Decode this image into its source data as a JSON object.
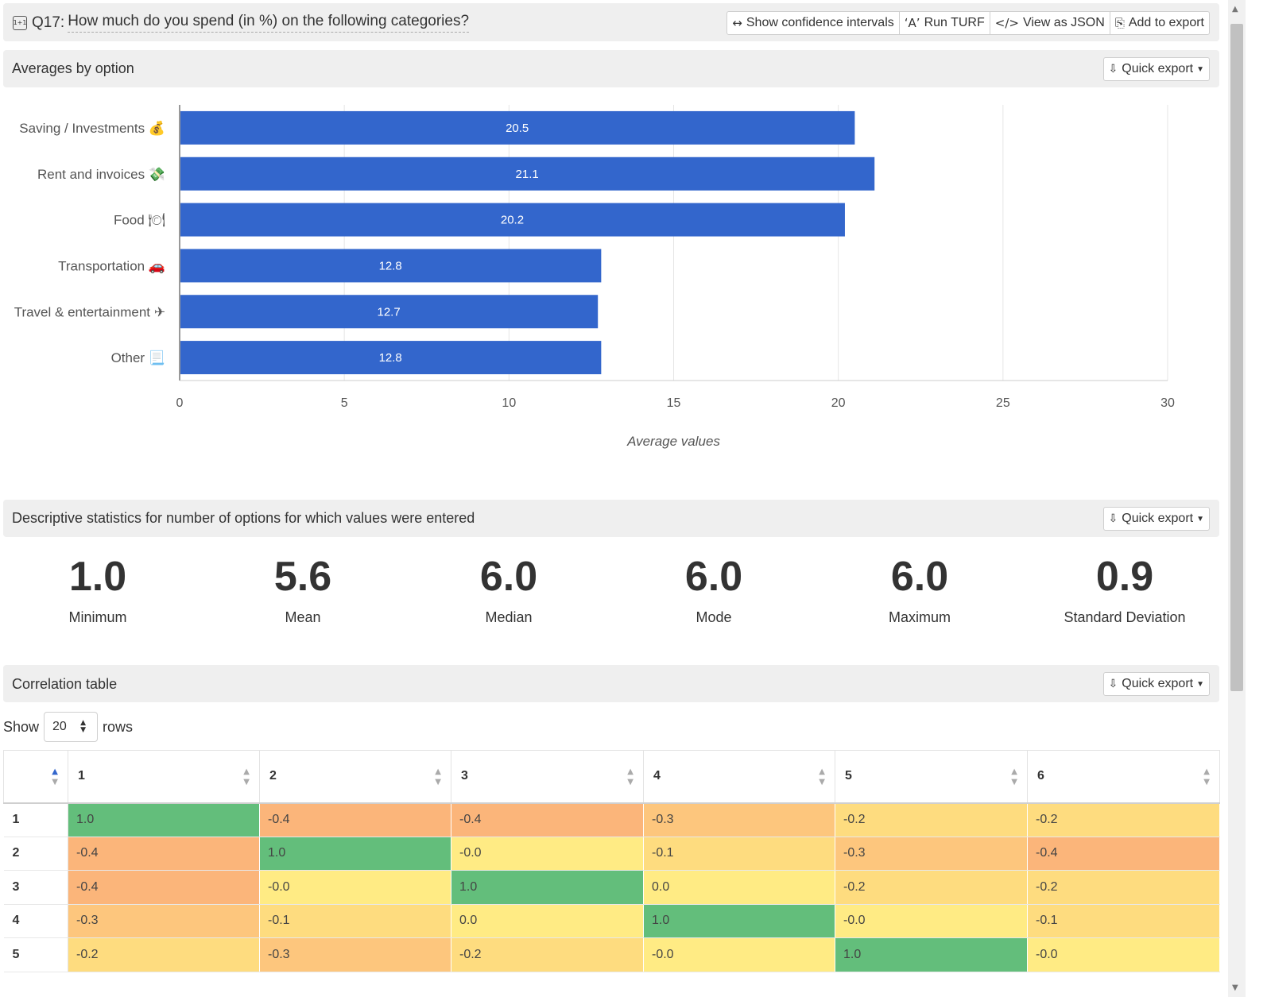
{
  "question": {
    "icon": "1+1",
    "number": "Q17:",
    "text": "How much do you spend (in %) on the following categories?"
  },
  "toolbar": {
    "confidence": "Show confidence intervals",
    "turf": "Run TURF",
    "json": "View as JSON",
    "export": "Add to export"
  },
  "averages": {
    "title": "Averages by option",
    "quick_export": "Quick export"
  },
  "chart_data": {
    "type": "bar",
    "orientation": "horizontal",
    "categories": [
      "Saving / Investments 💰",
      "Rent and invoices 💸",
      "Food 🍽",
      "Transportation 🚗",
      "Travel & entertainment ✈",
      "Other 📃"
    ],
    "values": [
      20.5,
      21.1,
      20.2,
      12.8,
      12.7,
      12.8
    ],
    "xlim": [
      0,
      30
    ],
    "xticks": [
      0,
      5,
      10,
      15,
      20,
      25,
      30
    ],
    "xlabel": "Average values",
    "grid": true,
    "bar_color": "#3366cc",
    "data_labels": true
  },
  "descriptive": {
    "title": "Descriptive statistics for number of options for which values were entered",
    "quick_export": "Quick export",
    "stats": [
      {
        "value": "1.0",
        "label": "Minimum"
      },
      {
        "value": "5.6",
        "label": "Mean"
      },
      {
        "value": "6.0",
        "label": "Median"
      },
      {
        "value": "6.0",
        "label": "Mode"
      },
      {
        "value": "6.0",
        "label": "Maximum"
      },
      {
        "value": "0.9",
        "label": "Standard Deviation"
      }
    ]
  },
  "correlation": {
    "title": "Correlation table",
    "quick_export": "Quick export",
    "show_label": "Show",
    "rows_value": "20",
    "rows_label": "rows",
    "columns": [
      "1",
      "2",
      "3",
      "4",
      "5",
      "6"
    ],
    "rows": [
      {
        "label": "1",
        "cells": [
          "1.0",
          "-0.4",
          "-0.4",
          "-0.3",
          "-0.2",
          "-0.2"
        ]
      },
      {
        "label": "2",
        "cells": [
          "-0.4",
          "1.0",
          "-0.0",
          "-0.1",
          "-0.3",
          "-0.4"
        ]
      },
      {
        "label": "3",
        "cells": [
          "-0.4",
          "-0.0",
          "1.0",
          "0.0",
          "-0.2",
          "-0.2"
        ]
      },
      {
        "label": "4",
        "cells": [
          "-0.3",
          "-0.1",
          "0.0",
          "1.0",
          "-0.0",
          "-0.1"
        ]
      },
      {
        "label": "5",
        "cells": [
          "-0.2",
          "-0.3",
          "-0.2",
          "-0.0",
          "1.0",
          "-0.0"
        ]
      }
    ],
    "colors": {
      "strong_pos": "#63be7b",
      "zero": "#ffeb84",
      "weak_neg": "#fedc7f",
      "mid_neg": "#fdc67d",
      "strong_neg": "#fbb57a"
    }
  }
}
